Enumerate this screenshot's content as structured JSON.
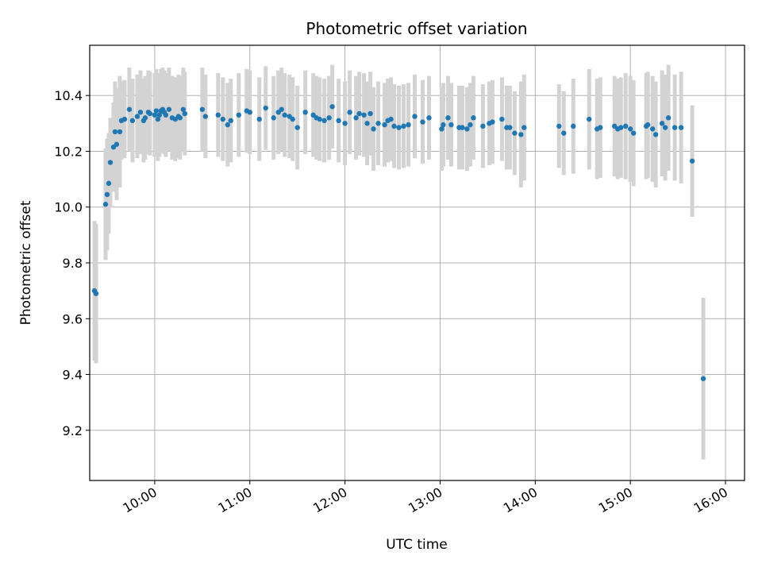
{
  "chart_data": {
    "type": "scatter",
    "title": "Photometric offset variation",
    "xlabel": "UTC time",
    "ylabel": "Photometric offset",
    "x_ticks": [
      "10:00",
      "11:00",
      "12:00",
      "13:00",
      "14:00",
      "15:00",
      "16:00"
    ],
    "y_ticks": [
      "9.2",
      "9.4",
      "9.6",
      "9.8",
      "10.0",
      "10.2",
      "10.4"
    ],
    "xlim": [
      "09:19",
      "16:12"
    ],
    "ylim": [
      9.02,
      10.58
    ],
    "grid": true,
    "marker_color": "#1f77b4",
    "errorbar_color": "#d3d3d3",
    "series": [
      {
        "x": [
          "09:22",
          "09:23",
          "09:29",
          "09:30",
          "09:31",
          "09:32",
          "09:34",
          "09:35",
          "09:36",
          "09:38",
          "09:39",
          "09:41",
          "09:44",
          "09:46",
          "09:49",
          "09:51",
          "09:53",
          "09:54",
          "09:56",
          "09:57",
          "10:00",
          "10:01",
          "10:02",
          "10:03",
          "10:04",
          "10:05",
          "10:06",
          "10:07",
          "10:09",
          "10:11",
          "10:13",
          "10:15",
          "10:16",
          "10:18",
          "10:19",
          "10:30",
          "10:32",
          "10:40",
          "10:43",
          "10:46",
          "10:48",
          "10:53",
          "10:58",
          "11:00",
          "11:06",
          "11:10",
          "11:15",
          "11:18",
          "11:20",
          "11:22",
          "11:25",
          "11:27",
          "11:30",
          "11:35",
          "11:40",
          "11:42",
          "11:44",
          "11:47",
          "11:50",
          "11:52",
          "11:56",
          "12:00",
          "12:03",
          "12:07",
          "12:09",
          "12:12",
          "12:14",
          "12:16",
          "12:18",
          "12:21",
          "12:25",
          "12:27",
          "12:29",
          "12:31",
          "12:34",
          "12:37",
          "12:40",
          "12:44",
          "12:49",
          "12:53",
          "13:01",
          "13:02",
          "13:05",
          "13:07",
          "13:12",
          "13:14",
          "13:17",
          "13:19",
          "13:21",
          "13:27",
          "13:31",
          "13:33",
          "13:39",
          "13:42",
          "13:44",
          "13:47",
          "13:51",
          "13:53",
          "14:15",
          "14:18",
          "14:24",
          "14:34",
          "14:39",
          "14:41",
          "14:50",
          "14:52",
          "14:54",
          "14:57",
          "15:00",
          "15:02",
          "15:10",
          "15:11",
          "15:14",
          "15:16",
          "15:20",
          "15:22",
          "15:24",
          "15:28",
          "15:32",
          "15:39"
        ],
        "y": [
          9.7,
          9.69,
          10.01,
          10.045,
          10.085,
          10.16,
          10.215,
          10.27,
          10.225,
          10.27,
          10.31,
          10.315,
          10.35,
          10.31,
          10.325,
          10.34,
          10.31,
          10.32,
          10.34,
          10.335,
          10.33,
          10.345,
          10.315,
          10.33,
          10.345,
          10.35,
          10.34,
          10.33,
          10.35,
          10.32,
          10.315,
          10.325,
          10.32,
          10.35,
          10.335,
          10.35,
          10.325,
          10.33,
          10.315,
          10.295,
          10.31,
          10.33,
          10.345,
          10.34,
          10.315,
          10.355,
          10.32,
          10.34,
          10.35,
          10.33,
          10.325,
          10.315,
          10.285,
          10.34,
          10.33,
          10.32,
          10.315,
          10.31,
          10.32,
          10.36,
          10.31,
          10.3,
          10.34,
          10.32,
          10.335,
          10.33,
          10.3,
          10.335,
          10.28,
          10.3,
          10.295,
          10.31,
          10.315,
          10.29,
          10.285,
          10.29,
          10.295,
          10.325,
          10.305,
          10.32,
          10.28,
          10.295,
          10.32,
          10.295,
          10.285,
          10.285,
          10.28,
          10.295,
          10.32,
          10.29,
          10.3,
          10.305,
          10.315,
          10.285,
          10.285,
          10.265,
          10.26,
          10.285,
          10.29,
          10.265,
          10.29,
          10.315,
          10.28,
          10.285,
          10.29,
          10.28,
          10.285,
          10.29,
          10.28,
          10.265,
          10.29,
          10.295,
          10.28,
          10.26,
          10.3,
          10.285,
          10.32,
          10.285,
          10.285,
          10.165
        ],
        "yerr": [
          0.25,
          0.25,
          0.2,
          0.2,
          0.18,
          0.16,
          0.16,
          0.18,
          0.2,
          0.2,
          0.14,
          0.14,
          0.15,
          0.15,
          0.15,
          0.15,
          0.15,
          0.15,
          0.15,
          0.15,
          0.15,
          0.15,
          0.15,
          0.15,
          0.15,
          0.15,
          0.15,
          0.15,
          0.15,
          0.15,
          0.15,
          0.15,
          0.15,
          0.15,
          0.15,
          0.15,
          0.15,
          0.15,
          0.15,
          0.15,
          0.15,
          0.15,
          0.15,
          0.15,
          0.15,
          0.15,
          0.15,
          0.15,
          0.15,
          0.15,
          0.15,
          0.15,
          0.15,
          0.15,
          0.15,
          0.15,
          0.15,
          0.15,
          0.15,
          0.15,
          0.15,
          0.15,
          0.15,
          0.15,
          0.15,
          0.15,
          0.15,
          0.15,
          0.15,
          0.15,
          0.15,
          0.15,
          0.15,
          0.15,
          0.15,
          0.15,
          0.15,
          0.15,
          0.15,
          0.15,
          0.15,
          0.15,
          0.15,
          0.15,
          0.15,
          0.15,
          0.15,
          0.15,
          0.15,
          0.15,
          0.15,
          0.15,
          0.15,
          0.15,
          0.15,
          0.15,
          0.19,
          0.19,
          0.15,
          0.15,
          0.17,
          0.18,
          0.18,
          0.18,
          0.18,
          0.18,
          0.18,
          0.19,
          0.19,
          0.19,
          0.19,
          0.19,
          0.19,
          0.19,
          0.19,
          0.19,
          0.19,
          0.19,
          0.2,
          0.2
        ]
      },
      {
        "x": [
          "15:46"
        ],
        "y": [
          9.385
        ],
        "yerr": [
          0.29
        ]
      }
    ]
  }
}
